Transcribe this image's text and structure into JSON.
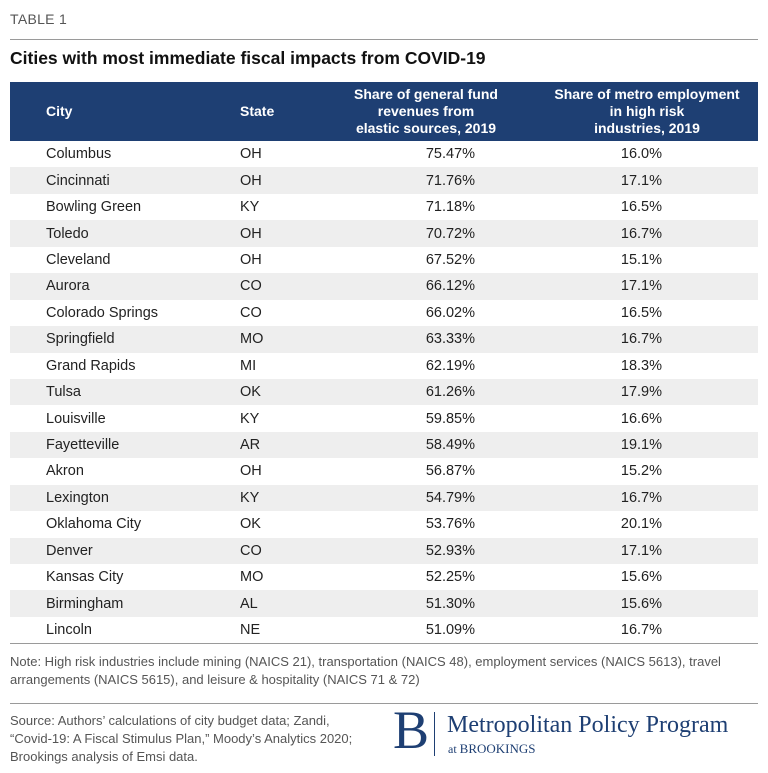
{
  "label": "TABLE 1",
  "title": "Cities with most immediate fiscal impacts from COVID-19",
  "table": {
    "headers": {
      "city": "City",
      "state": "State",
      "revenue": [
        "Share of general fund",
        "revenues from",
        "elastic sources, 2019"
      ],
      "employment": [
        "Share of metro employment",
        "in high risk",
        "industries, 2019"
      ]
    },
    "rows": [
      [
        "Columbus",
        "OH",
        "75.47%",
        "16.0%"
      ],
      [
        "Cincinnati",
        "OH",
        "71.76%",
        "17.1%"
      ],
      [
        "Bowling Green",
        "KY",
        "71.18%",
        "16.5%"
      ],
      [
        "Toledo",
        "OH",
        "70.72%",
        "16.7%"
      ],
      [
        "Cleveland",
        "OH",
        "67.52%",
        "15.1%"
      ],
      [
        "Aurora",
        "CO",
        "66.12%",
        "17.1%"
      ],
      [
        "Colorado Springs",
        "CO",
        "66.02%",
        "16.5%"
      ],
      [
        "Springfield",
        "MO",
        "63.33%",
        "16.7%"
      ],
      [
        "Grand Rapids",
        "MI",
        "62.19%",
        "18.3%"
      ],
      [
        "Tulsa",
        "OK",
        "61.26%",
        "17.9%"
      ],
      [
        "Louisville",
        "KY",
        "59.85%",
        "16.6%"
      ],
      [
        "Fayetteville",
        "AR",
        "58.49%",
        "19.1%"
      ],
      [
        "Akron",
        "OH",
        "56.87%",
        "15.2%"
      ],
      [
        "Lexington",
        "KY",
        "54.79%",
        "16.7%"
      ],
      [
        "Oklahoma City",
        "OK",
        "53.76%",
        "20.1%"
      ],
      [
        "Denver",
        "CO",
        "52.93%",
        "17.1%"
      ],
      [
        "Kansas City",
        "MO",
        "52.25%",
        "15.6%"
      ],
      [
        "Birmingham",
        "AL",
        "51.30%",
        "15.6%"
      ],
      [
        "Lincoln",
        "NE",
        "51.09%",
        "16.7%"
      ]
    ]
  },
  "note": "Note: High risk industries include mining (NAICS 21), transportation (NAICS 48), employment services (NAICS 5613), travel arrangements (NAICS 5615), and leisure & hospitality (NAICS 71 & 72)",
  "source": "Source: Authors’ calculations of city budget data; Zandi, “Covid-19: A Fiscal Stimulus Plan,” Moody’s Analytics 2020; Brookings analysis of Emsi data.",
  "logo": {
    "letter": "B",
    "name": "Metropolitan Policy Program",
    "at": "at",
    "org": "BROOKINGS"
  },
  "colors": {
    "header_background": "#1e3f73",
    "stripe": "#eeeeee",
    "brand": "#1e3f73"
  }
}
